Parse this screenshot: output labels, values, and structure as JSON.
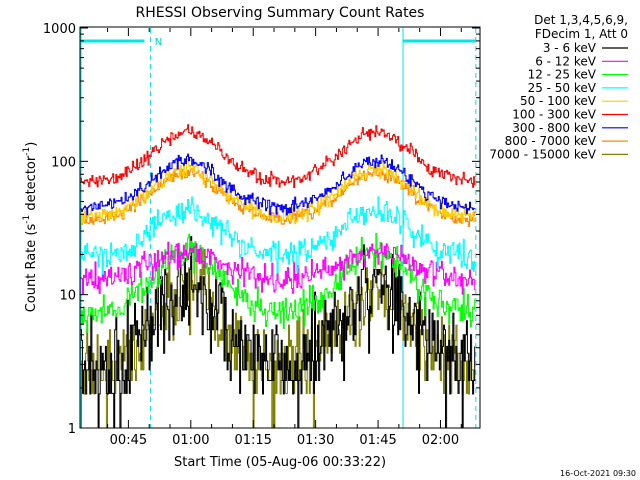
{
  "chart_data": {
    "type": "line",
    "title": "RHESSI Observing Summary Count Rates",
    "xlabel": "Start Time (05-Aug-06 00:33:22)",
    "ylabel_main": "Count Rate (s",
    "ylabel_sup1": "-1",
    "ylabel_mid": " detector",
    "ylabel_sup2": "-1",
    "ylabel_end": ")",
    "yscale": "log",
    "ylim": [
      1,
      1000
    ],
    "xlim_minutes": [
      33.37,
      129.5
    ],
    "x_ticks": [
      {
        "m": 45,
        "label": "00:45"
      },
      {
        "m": 60,
        "label": "01:00"
      },
      {
        "m": 75,
        "label": "01:15"
      },
      {
        "m": 90,
        "label": "01:30"
      },
      {
        "m": 105,
        "label": "01:45"
      },
      {
        "m": 120,
        "label": "02:00"
      }
    ],
    "y_ticks": [
      {
        "v": 1,
        "label": "1"
      },
      {
        "v": 10,
        "label": "10"
      },
      {
        "v": 100,
        "label": "100"
      },
      {
        "v": 1000,
        "label": "1000"
      }
    ],
    "legend_header": [
      "Det 1,3,4,5,6,9,",
      "FDecim 1, Att 0"
    ],
    "timestamp": "16-Oct-2021 09:30",
    "night_marker": {
      "label": "N",
      "start_m": 33.4,
      "end_m": 50.3
    },
    "night_marker_2": {
      "start_m": 111.0,
      "end_m": 128.5
    },
    "boundaries_m": [
      50.3,
      111.0,
      128.5
    ],
    "series": [
      {
        "name": "3 - 6 keV",
        "color": "#000000",
        "base": 2.7,
        "peak": 11.5,
        "noise": 0.18
      },
      {
        "name": "6 - 12 keV",
        "color": "#ff00ff",
        "base": 13.0,
        "peak": 21.0,
        "noise": 0.05
      },
      {
        "name": "12 - 25 keV",
        "color": "#00ff00",
        "base": 7.2,
        "peak": 21.0,
        "noise": 0.06
      },
      {
        "name": "25 - 50 keV",
        "color": "#00ffff",
        "base": 19.0,
        "peak": 43.0,
        "noise": 0.05
      },
      {
        "name": "50 - 100 keV",
        "color": "#ffcc00",
        "base": 38.0,
        "peak": 88.0,
        "noise": 0.03
      },
      {
        "name": "100 - 300 keV",
        "color": "#ff0000",
        "base": 70.0,
        "peak": 165.0,
        "noise": 0.025
      },
      {
        "name": "300 - 800 keV",
        "color": "#0000ff",
        "base": 44.0,
        "peak": 102.0,
        "noise": 0.025
      },
      {
        "name": "800 - 7000 keV",
        "color": "#ff8800",
        "base": 36.0,
        "peak": 82.0,
        "noise": 0.025
      },
      {
        "name": "7000 - 15000 keV",
        "color": "#808000",
        "base": 2.7,
        "peak": 11.0,
        "noise": 0.15
      }
    ],
    "orbit_peaks_m": [
      59.0,
      104.5
    ],
    "orbit_width_m": 11.5,
    "grid": false,
    "legend_position": "right"
  }
}
